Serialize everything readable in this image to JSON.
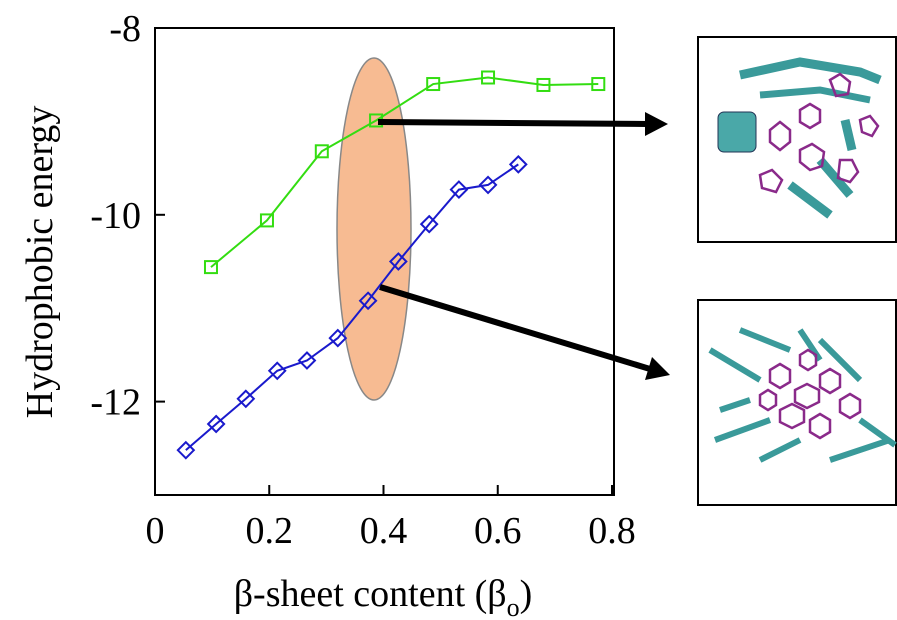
{
  "chart_data": {
    "type": "line",
    "y_label": "Hydrophobic energy",
    "x_label": {
      "main": "β-sheet content (β",
      "sub": "o",
      "end": ")"
    },
    "xlim": [
      0,
      0.8
    ],
    "xticks": [
      0,
      0.2,
      0.4,
      0.6,
      0.8
    ],
    "ylim": [
      -13,
      -8
    ],
    "yticks": [
      -8,
      -10,
      -12
    ],
    "series": [
      {
        "marker": "square",
        "color": "#33dd11",
        "x": [
          0.098,
          0.196,
          0.292,
          0.387,
          0.487,
          0.583,
          0.68,
          0.776
        ],
        "values": [
          -10.56,
          -10.06,
          -9.32,
          -8.99,
          -8.6,
          -8.53,
          -8.61,
          -8.6
        ]
      },
      {
        "marker": "diamond",
        "color": "#1a1acc",
        "x": [
          0.054,
          0.107,
          0.159,
          0.214,
          0.266,
          0.32,
          0.373,
          0.426,
          0.48,
          0.532,
          0.583,
          0.636
        ],
        "values": [
          -12.52,
          -12.24,
          -11.97,
          -11.67,
          -11.56,
          -11.32,
          -10.92,
          -10.5,
          -10.1,
          -9.73,
          -9.68,
          -9.46
        ]
      }
    ]
  }
}
